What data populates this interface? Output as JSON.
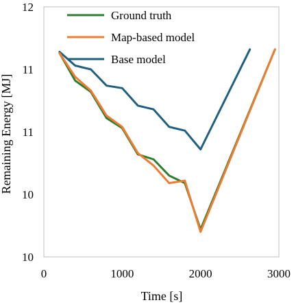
{
  "chart_data": {
    "type": "line",
    "xlabel": "Time [s]",
    "ylabel": "Remaining Energy [MJ]",
    "xlim": [
      0,
      3000
    ],
    "ylim": [
      10,
      12
    ],
    "x_ticks": [
      0,
      1000,
      2000,
      3000
    ],
    "y_ticks": [
      10,
      10.5,
      11,
      11.5,
      12
    ],
    "y_tick_labels": [
      "10",
      "10",
      "11",
      "11",
      "12"
    ],
    "grid": false,
    "legend_position": "top-left",
    "series": [
      {
        "name": "Ground truth",
        "color": "#2e7d32",
        "x": [
          200,
          400,
          600,
          800,
          1000,
          1200,
          1400,
          1600,
          1800,
          2000,
          2950
        ],
        "y": [
          11.63,
          11.41,
          11.32,
          11.11,
          11.03,
          10.82,
          10.78,
          10.65,
          10.59,
          10.22,
          11.66
        ]
      },
      {
        "name": "Map-based model",
        "color": "#ed7d31",
        "x": [
          200,
          400,
          600,
          800,
          1000,
          1200,
          1400,
          1600,
          1800,
          2000,
          2950
        ],
        "y": [
          11.63,
          11.44,
          11.33,
          11.13,
          11.04,
          10.83,
          10.73,
          10.59,
          10.61,
          10.2,
          11.66
        ]
      },
      {
        "name": "Base model",
        "color": "#1f5f7f",
        "x": [
          200,
          400,
          600,
          800,
          1000,
          1200,
          1400,
          1600,
          1800,
          2000,
          2630
        ],
        "y": [
          11.64,
          11.53,
          11.5,
          11.37,
          11.35,
          11.21,
          11.18,
          11.04,
          11.01,
          10.86,
          11.66
        ]
      }
    ]
  }
}
